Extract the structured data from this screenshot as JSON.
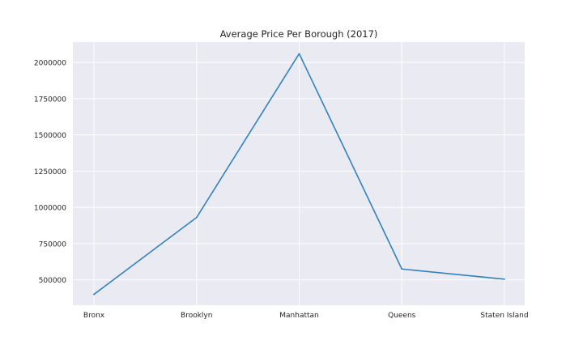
{
  "chart_data": {
    "type": "line",
    "title": "Average Price Per Borough (2017)",
    "xlabel": "",
    "ylabel": "",
    "categories": [
      "Bronx",
      "Brooklyn",
      "Manhattan",
      "Queens",
      "Staten Island"
    ],
    "series": [
      {
        "values": [
          400000,
          930000,
          2060000,
          575000,
          505000
        ]
      }
    ],
    "ylim": [
      325000,
      2140000
    ],
    "yticks": [
      500000,
      750000,
      1000000,
      1250000,
      1500000,
      1750000,
      2000000
    ],
    "ytick_labels": [
      "500000",
      "750000",
      "1000000",
      "1250000",
      "1500000",
      "1750000",
      "2000000"
    ],
    "grid": true,
    "legend": "none",
    "colors": {
      "background": "#eaeaf2",
      "grid": "#ffffff",
      "line": "#3182bd"
    }
  }
}
